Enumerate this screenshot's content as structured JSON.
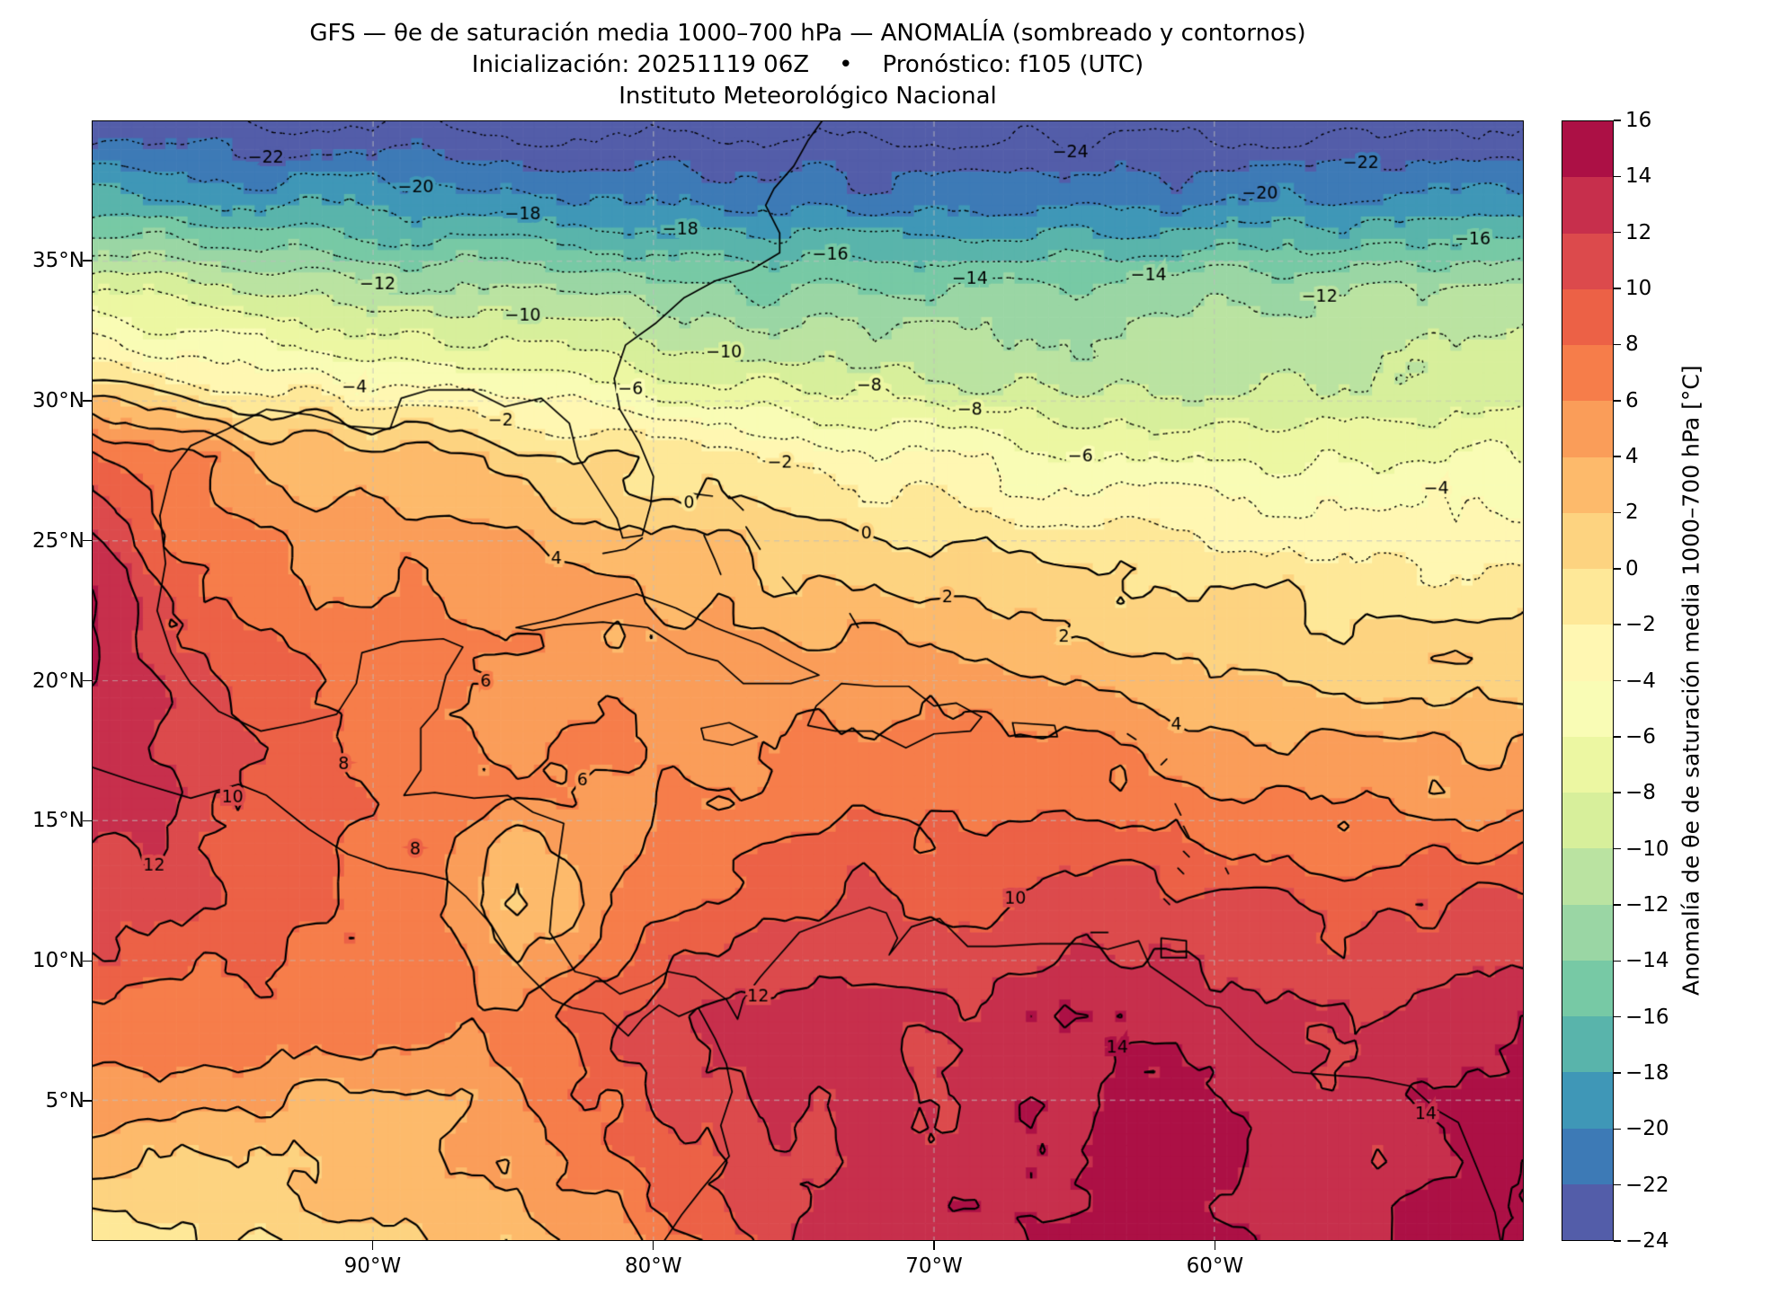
{
  "figure": {
    "background": "#ffffff"
  },
  "title": {
    "line1": "GFS — θe de saturación media 1000–700 hPa — ANOMALÍA (sombreado y contornos)",
    "line2": "Inicialización: 20251119 06Z    •    Pronóstico: f105 (UTC)",
    "line3": "Instituto Meteorológico Nacional"
  },
  "axes": {
    "x_ticks": [
      {
        "label": "90°W",
        "lon": -90
      },
      {
        "label": "80°W",
        "lon": -80
      },
      {
        "label": "70°W",
        "lon": -70
      },
      {
        "label": "60°W",
        "lon": -60
      }
    ],
    "y_ticks": [
      {
        "label": "35°N",
        "lat": 35
      },
      {
        "label": "30°N",
        "lat": 30
      },
      {
        "label": "25°N",
        "lat": 25
      },
      {
        "label": "20°N",
        "lat": 20
      },
      {
        "label": "15°N",
        "lat": 15
      },
      {
        "label": "10°N",
        "lat": 10
      },
      {
        "label": "5°N",
        "lat": 5
      }
    ],
    "grid_lons": [
      -90,
      -80,
      -70,
      -60
    ],
    "grid_lats": [
      5,
      10,
      15,
      20,
      25,
      30,
      35
    ]
  },
  "colorbar": {
    "label": "Anomalía de θe de saturación media 1000–700 hPa [°C]",
    "tick_values": [
      16,
      14,
      12,
      10,
      8,
      6,
      4,
      2,
      0,
      -2,
      -4,
      -6,
      -8,
      -10,
      -12,
      -14,
      -16,
      -18,
      -20,
      -22,
      -24
    ]
  },
  "chart_data": {
    "type": "heatmap",
    "title": "GFS — θe de saturación media 1000–700 hPa — ANOMALÍA (sombreado y contornos)",
    "subtitle": "Inicialización: 20251119 06Z • Pronóstico: f105 (UTC)",
    "source": "Instituto Meteorológico Nacional",
    "units": "°C",
    "extent": {
      "lon_min": -100,
      "lon_max": -49,
      "lat_min": 0,
      "lat_max": 40
    },
    "x_tick_labels": [
      "90°W",
      "80°W",
      "70°W",
      "60°W"
    ],
    "y_tick_labels": [
      "5°N",
      "10°N",
      "15°N",
      "20°N",
      "25°N",
      "30°N",
      "35°N"
    ],
    "contour_interval": 2,
    "contour_levels": [
      -24,
      -22,
      -20,
      -18,
      -16,
      -14,
      -12,
      -10,
      -8,
      -6,
      -4,
      -2,
      0,
      2,
      4,
      6,
      8,
      10,
      12,
      14,
      16
    ],
    "negative_contour_style": "dotted",
    "positive_contour_style": "solid",
    "colormap": {
      "name": "spectral-reversed-discrete",
      "levels": [
        -24,
        -22,
        -20,
        -18,
        -16,
        -14,
        -12,
        -10,
        -8,
        -6,
        -4,
        -2,
        0,
        2,
        4,
        6,
        8,
        10,
        12,
        14,
        16
      ],
      "colors": [
        "#535da9",
        "#3d7ab6",
        "#3f97b7",
        "#59b4ab",
        "#77c9a5",
        "#9ad6a4",
        "#bae3a1",
        "#d7ef9b",
        "#ecf7a2",
        "#f9fcb5",
        "#fff7b2",
        "#fee898",
        "#fdd380",
        "#fdba6b",
        "#fa9d59",
        "#f67d4a",
        "#ec6146",
        "#dc4a4c",
        "#c72f4c",
        "#ac1045"
      ]
    },
    "grid": {
      "lons": [
        -100,
        -97,
        -94,
        -91,
        -88,
        -85,
        -82,
        -79,
        -76,
        -73,
        -70,
        -67,
        -64,
        -61,
        -58,
        -55,
        -52,
        -49
      ],
      "lats": [
        0,
        4,
        8,
        12,
        16,
        20,
        24,
        28,
        31,
        34,
        37,
        40
      ],
      "anomaly_values": [
        [
          -1,
          -0.5,
          0,
          1,
          2,
          3,
          5,
          8,
          11,
          13,
          13,
          14,
          15,
          15,
          14,
          13,
          15,
          16
        ],
        [
          4,
          3,
          3,
          3,
          4,
          5,
          8,
          10,
          12,
          13,
          12,
          13,
          14,
          15,
          13,
          12,
          14,
          15
        ],
        [
          8,
          8,
          7,
          7,
          7,
          6,
          9,
          12,
          13,
          12,
          12,
          13,
          14,
          13,
          12,
          12,
          13,
          14
        ],
        [
          11,
          10,
          9,
          8,
          7,
          1,
          5,
          8,
          10,
          11,
          10,
          10,
          11,
          11,
          10,
          9,
          10,
          11
        ],
        [
          13,
          12,
          10,
          8,
          7,
          6,
          6,
          6.5,
          7,
          7.5,
          8,
          7.5,
          7,
          6.5,
          6,
          5.5,
          5,
          5
        ],
        [
          14,
          11,
          9,
          8,
          7,
          6,
          5.5,
          5,
          5,
          5.5,
          5,
          4,
          3.5,
          3,
          2.5,
          2,
          2,
          2
        ],
        [
          13,
          9,
          7,
          6,
          6,
          5,
          4,
          3,
          2,
          1.5,
          1,
          0.5,
          0,
          -0.5,
          -1,
          -1.5,
          -2,
          -2
        ],
        [
          9,
          7,
          4,
          3,
          2,
          1,
          0,
          -1,
          -2,
          -3,
          -4,
          -5,
          -5.5,
          -6,
          -6,
          -6,
          -6,
          -6
        ],
        [
          -1,
          -2.5,
          -3,
          -4,
          -5,
          -6,
          -7,
          -8,
          -9,
          -10,
          -10.5,
          -11,
          -11,
          -11,
          -10.5,
          -10,
          -9.5,
          -9
        ],
        [
          -8,
          -9,
          -10,
          -11,
          -12,
          -12.5,
          -13,
          -13.5,
          -14,
          -14,
          -14,
          -13.5,
          -13,
          -13,
          -12.5,
          -12,
          -12,
          -11.5
        ],
        [
          -17,
          -17.5,
          -18,
          -18.5,
          -19,
          -19,
          -19.5,
          -20,
          -20,
          -20.5,
          -21,
          -21,
          -20.5,
          -20,
          -20,
          -19.5,
          -19,
          -19
        ],
        [
          -23,
          -23.5,
          -24,
          -24.3,
          -24.5,
          -24.5,
          -24.5,
          -24.6,
          -24.8,
          -25,
          -25,
          -25,
          -25,
          -25,
          -24.8,
          -24.6,
          -24.5,
          -24.5
        ]
      ]
    }
  },
  "map_overlay": {
    "coastlines": [
      [
        [
          -97.6,
          25.9
        ],
        [
          -97.2,
          27.5
        ],
        [
          -96.5,
          28.4
        ],
        [
          -95.2,
          29.0
        ],
        [
          -93.8,
          29.7
        ],
        [
          -92.2,
          29.5
        ],
        [
          -90.8,
          29.1
        ],
        [
          -89.4,
          29.0
        ],
        [
          -89.0,
          30.1
        ],
        [
          -88.0,
          30.4
        ],
        [
          -86.5,
          30.4
        ],
        [
          -85.3,
          29.8
        ],
        [
          -84.0,
          30.1
        ],
        [
          -83.0,
          29.2
        ],
        [
          -82.7,
          28.0
        ],
        [
          -82.0,
          26.9
        ],
        [
          -81.3,
          25.8
        ],
        [
          -81.1,
          25.1
        ],
        [
          -80.4,
          25.2
        ],
        [
          -80.1,
          26.3
        ],
        [
          -80.0,
          27.3
        ],
        [
          -80.5,
          28.5
        ],
        [
          -81.2,
          29.7
        ],
        [
          -81.4,
          30.8
        ],
        [
          -81.0,
          32.0
        ],
        [
          -79.9,
          32.8
        ],
        [
          -78.9,
          33.7
        ],
        [
          -77.8,
          34.3
        ],
        [
          -76.5,
          34.7
        ],
        [
          -75.5,
          35.3
        ],
        [
          -75.5,
          36.0
        ],
        [
          -76.0,
          37.0
        ],
        [
          -75.7,
          37.6
        ],
        [
          -75.0,
          38.4
        ],
        [
          -74.5,
          39.3
        ],
        [
          -74.0,
          40.0
        ]
      ],
      [
        [
          -97.6,
          25.9
        ],
        [
          -97.4,
          24.2
        ],
        [
          -97.7,
          22.5
        ],
        [
          -97.2,
          21.0
        ],
        [
          -96.5,
          19.9
        ],
        [
          -95.5,
          18.9
        ],
        [
          -94.0,
          18.2
        ],
        [
          -92.5,
          18.5
        ],
        [
          -91.3,
          18.8
        ],
        [
          -90.6,
          19.9
        ],
        [
          -90.4,
          21.0
        ],
        [
          -89.0,
          21.4
        ],
        [
          -87.5,
          21.5
        ],
        [
          -86.8,
          21.2
        ],
        [
          -87.4,
          20.2
        ],
        [
          -87.7,
          19.0
        ],
        [
          -88.3,
          18.3
        ],
        [
          -88.3,
          16.8
        ],
        [
          -88.9,
          15.9
        ],
        [
          -87.8,
          16.0
        ],
        [
          -86.4,
          15.8
        ],
        [
          -85.2,
          15.9
        ],
        [
          -84.3,
          15.3
        ],
        [
          -83.2,
          14.9
        ],
        [
          -83.4,
          13.5
        ],
        [
          -83.6,
          12.2
        ],
        [
          -83.7,
          11.0
        ],
        [
          -82.8,
          9.6
        ],
        [
          -82.0,
          9.4
        ],
        [
          -81.2,
          8.8
        ],
        [
          -80.1,
          9.2
        ],
        [
          -79.5,
          9.6
        ],
        [
          -78.5,
          9.4
        ],
        [
          -77.4,
          8.6
        ],
        [
          -77.0,
          7.9
        ],
        [
          -76.8,
          8.6
        ],
        [
          -76.2,
          9.4
        ],
        [
          -75.5,
          10.2
        ],
        [
          -74.8,
          11.0
        ],
        [
          -73.5,
          11.5
        ],
        [
          -72.3,
          11.9
        ],
        [
          -71.7,
          11.7
        ],
        [
          -71.3,
          10.8
        ],
        [
          -71.6,
          10.2
        ],
        [
          -70.8,
          11.2
        ],
        [
          -70.2,
          11.4
        ],
        [
          -69.8,
          11.5
        ],
        [
          -68.8,
          10.5
        ],
        [
          -67.8,
          10.5
        ],
        [
          -66.2,
          10.6
        ],
        [
          -64.8,
          10.6
        ],
        [
          -63.8,
          10.4
        ],
        [
          -62.7,
          10.7
        ],
        [
          -62.3,
          9.8
        ],
        [
          -61.0,
          8.9
        ],
        [
          -60.3,
          8.4
        ],
        [
          -59.8,
          8.3
        ],
        [
          -58.5,
          7.0
        ],
        [
          -57.2,
          6.0
        ],
        [
          -55.9,
          5.9
        ],
        [
          -54.5,
          5.8
        ],
        [
          -53.0,
          5.5
        ],
        [
          -52.0,
          4.6
        ],
        [
          -51.3,
          4.2
        ],
        [
          -50.6,
          2.5
        ],
        [
          -50.0,
          1.0
        ],
        [
          -49.8,
          0.0
        ]
      ],
      [
        [
          -100.0,
          16.9
        ],
        [
          -98.5,
          16.4
        ],
        [
          -96.5,
          15.8
        ],
        [
          -94.8,
          16.3
        ],
        [
          -93.8,
          15.9
        ],
        [
          -92.3,
          14.7
        ],
        [
          -90.9,
          13.8
        ],
        [
          -89.5,
          13.3
        ],
        [
          -88.2,
          13.1
        ],
        [
          -87.4,
          12.9
        ],
        [
          -86.7,
          12.3
        ],
        [
          -85.8,
          11.3
        ],
        [
          -85.2,
          10.3
        ],
        [
          -84.6,
          9.6
        ],
        [
          -83.6,
          8.6
        ],
        [
          -82.9,
          8.3
        ],
        [
          -81.8,
          8.1
        ],
        [
          -80.9,
          7.3
        ],
        [
          -80.4,
          7.9
        ],
        [
          -79.8,
          8.4
        ],
        [
          -79.1,
          8.0
        ],
        [
          -78.4,
          8.3
        ],
        [
          -77.8,
          7.2
        ],
        [
          -77.4,
          6.3
        ],
        [
          -77.2,
          5.3
        ],
        [
          -77.6,
          4.1
        ],
        [
          -77.3,
          3.0
        ],
        [
          -78.3,
          1.8
        ],
        [
          -79.0,
          0.9
        ],
        [
          -79.6,
          0.0
        ]
      ],
      [
        [
          -84.9,
          21.9
        ],
        [
          -83.5,
          22.2
        ],
        [
          -82.0,
          22.7
        ],
        [
          -80.6,
          23.1
        ],
        [
          -79.2,
          22.6
        ],
        [
          -77.8,
          21.9
        ],
        [
          -76.2,
          21.3
        ],
        [
          -75.1,
          20.7
        ],
        [
          -74.1,
          20.2
        ],
        [
          -75.1,
          19.9
        ],
        [
          -76.8,
          19.9
        ],
        [
          -77.7,
          20.7
        ],
        [
          -78.8,
          21.0
        ],
        [
          -80.2,
          21.9
        ],
        [
          -81.8,
          22.1
        ],
        [
          -83.2,
          22.0
        ],
        [
          -84.3,
          21.8
        ],
        [
          -84.9,
          21.9
        ]
      ],
      [
        [
          -74.5,
          18.4
        ],
        [
          -73.5,
          18.2
        ],
        [
          -72.2,
          18.2
        ],
        [
          -71.0,
          17.6
        ],
        [
          -70.0,
          18.1
        ],
        [
          -68.7,
          18.2
        ],
        [
          -68.3,
          18.7
        ],
        [
          -69.2,
          19.2
        ],
        [
          -70.0,
          19.1
        ],
        [
          -70.9,
          19.8
        ],
        [
          -72.1,
          19.8
        ],
        [
          -73.3,
          19.9
        ],
        [
          -74.2,
          19.1
        ],
        [
          -74.5,
          18.4
        ]
      ],
      [
        [
          -78.3,
          18.3
        ],
        [
          -77.3,
          18.5
        ],
        [
          -76.3,
          18.0
        ],
        [
          -77.2,
          17.7
        ],
        [
          -78.2,
          17.9
        ],
        [
          -78.3,
          18.3
        ]
      ],
      [
        [
          -67.2,
          18.5
        ],
        [
          -65.7,
          18.4
        ],
        [
          -65.6,
          18.0
        ],
        [
          -67.1,
          18.0
        ],
        [
          -67.2,
          18.5
        ]
      ],
      [
        [
          -61.9,
          10.8
        ],
        [
          -61.0,
          10.7
        ],
        [
          -61.0,
          10.1
        ],
        [
          -61.9,
          10.1
        ],
        [
          -61.9,
          10.8
        ]
      ],
      [
        [
          -78.2,
          25.2
        ],
        [
          -77.8,
          24.3
        ],
        [
          -77.6,
          23.8
        ]
      ],
      [
        [
          -78.7,
          26.7
        ],
        [
          -77.9,
          26.6
        ]
      ],
      [
        [
          -77.3,
          26.6
        ],
        [
          -76.8,
          26.1
        ]
      ],
      [
        [
          -76.7,
          25.5
        ],
        [
          -76.2,
          24.7
        ]
      ],
      [
        [
          -75.4,
          23.7
        ],
        [
          -74.9,
          23.1
        ]
      ],
      [
        [
          -73.0,
          22.4
        ],
        [
          -72.7,
          21.9
        ]
      ],
      [
        [
          -61.9,
          17.0
        ],
        [
          -61.7,
          17.2
        ]
      ],
      [
        [
          -61.4,
          15.6
        ],
        [
          -61.2,
          15.2
        ]
      ],
      [
        [
          -61.1,
          14.8
        ],
        [
          -60.9,
          14.4
        ]
      ],
      [
        [
          -61.1,
          13.9
        ],
        [
          -60.9,
          13.7
        ]
      ],
      [
        [
          -61.3,
          13.3
        ],
        [
          -61.1,
          13.1
        ]
      ],
      [
        [
          -61.8,
          12.2
        ],
        [
          -61.6,
          12.0
        ]
      ],
      [
        [
          -59.6,
          13.3
        ],
        [
          -59.5,
          13.1
        ]
      ],
      [
        [
          -63.1,
          18.1
        ],
        [
          -62.8,
          17.9
        ]
      ],
      [
        [
          -64.4,
          11.0
        ],
        [
          -63.8,
          11.0
        ]
      ],
      [
        [
          -81.8,
          24.55
        ],
        [
          -81.0,
          24.7
        ],
        [
          -80.4,
          25.1
        ]
      ]
    ]
  }
}
